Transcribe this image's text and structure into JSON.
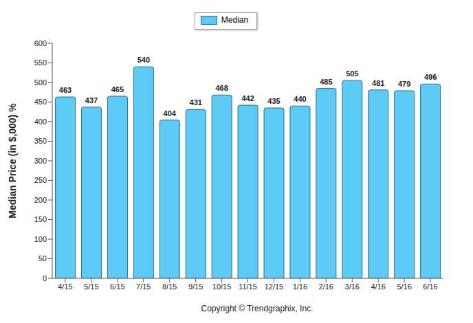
{
  "chart_data": {
    "type": "bar",
    "y_label": "Median Price (in $,000) %",
    "annotation": "Copyright © Trendgraphix, Inc.",
    "categories": [
      "4/15",
      "5/15",
      "6/15",
      "7/15",
      "8/15",
      "9/15",
      "10/15",
      "11/15",
      "12/15",
      "1/16",
      "2/16",
      "3/16",
      "4/16",
      "5/16",
      "6/16"
    ],
    "series": [
      {
        "name": "Median",
        "color": "#5ccbf6",
        "values": [
          463,
          437,
          465,
          540,
          404,
          431,
          468,
          442,
          435,
          440,
          485,
          505,
          481,
          479,
          496
        ]
      }
    ],
    "ylim": [
      0,
      600
    ],
    "yticks": [
      0,
      50,
      100,
      150,
      200,
      250,
      300,
      350,
      400,
      450,
      500,
      550,
      600
    ],
    "grid": false,
    "legend": "top",
    "data_labels": true
  }
}
